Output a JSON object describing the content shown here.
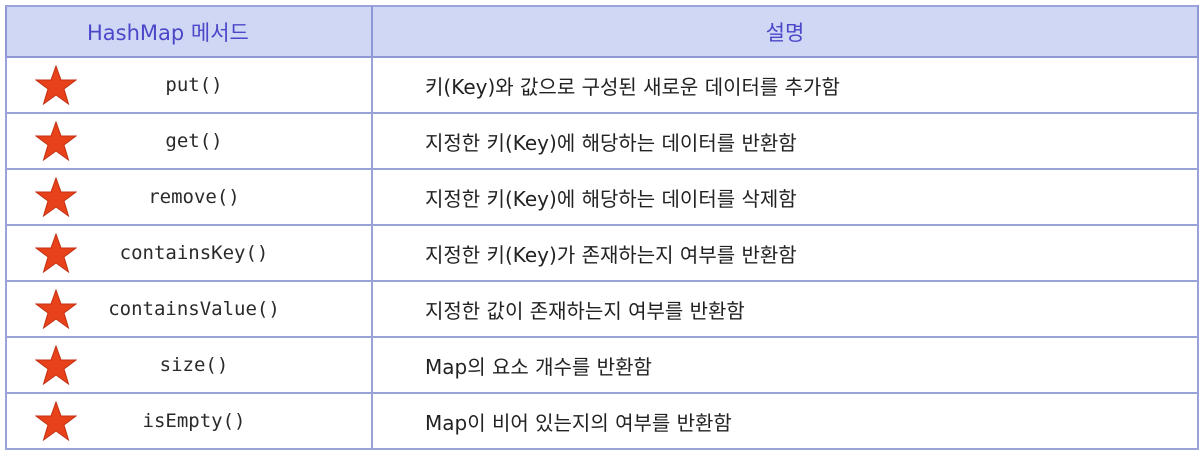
{
  "table": {
    "headers": [
      "HashMap 메서드",
      "설명"
    ],
    "star_color": "#e8421a",
    "header_bg": "#cfd7f4",
    "header_text_color": "#4c46c9",
    "border_color": "#9aa2da",
    "rows": [
      {
        "method": "put()",
        "description": "키(Key)와 값으로 구성된 새로운 데이터를 추가함",
        "marker_icon": "star-icon"
      },
      {
        "method": "get()",
        "description": "지정한 키(Key)에 해당하는 데이터를 반환함",
        "marker_icon": "star-icon"
      },
      {
        "method": "remove()",
        "description": "지정한 키(Key)에 해당하는 데이터를 삭제함",
        "marker_icon": "star-icon"
      },
      {
        "method": "containsKey()",
        "description": "지정한 키(Key)가 존재하는지 여부를 반환함",
        "marker_icon": "star-icon"
      },
      {
        "method": "containsValue()",
        "description": "지정한 값이 존재하는지 여부를 반환함",
        "marker_icon": "star-icon"
      },
      {
        "method": "size()",
        "description": "Map의 요소 개수를 반환함",
        "marker_icon": "star-icon"
      },
      {
        "method": "isEmpty()",
        "description": "Map이 비어 있는지의 여부를 반환함",
        "marker_icon": "star-icon"
      }
    ]
  }
}
